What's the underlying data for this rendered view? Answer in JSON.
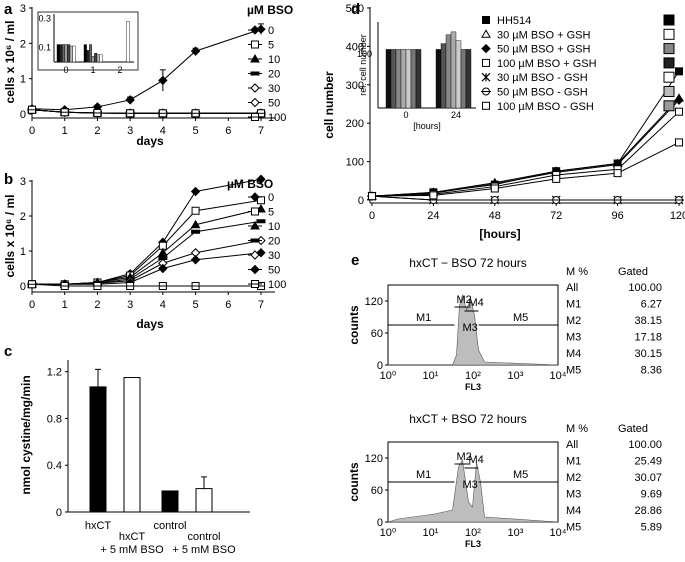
{
  "panels": {
    "a": {
      "label": "a"
    },
    "b": {
      "label": "b"
    },
    "c": {
      "label": "c"
    },
    "d": {
      "label": "d"
    },
    "e": {
      "label": "e"
    }
  },
  "chart_data": [
    {
      "panel": "a",
      "type": "line",
      "xlabel": "days",
      "ylabel": "cells x 10⁶ / ml",
      "legend_title": "µM BSO",
      "x": [
        0,
        1,
        2,
        3,
        4,
        5,
        6,
        7
      ],
      "xlim": [
        0,
        7
      ],
      "ylim": [
        0,
        3
      ],
      "yticks": [
        0,
        1,
        2,
        3
      ],
      "series": [
        {
          "name": "0",
          "marker": "diamond",
          "values": [
            0.15,
            0.12,
            0.2,
            0.4,
            0.95,
            1.78,
            null,
            2.4
          ],
          "errors": [
            0.03,
            0.03,
            0.05,
            0.08,
            0.3,
            0.08,
            null,
            0.15
          ]
        },
        {
          "name": "5",
          "marker": "square-open",
          "values": [
            0.12,
            0.05,
            0.03,
            0.02,
            0.02,
            0.02,
            null,
            0.02
          ]
        },
        {
          "name": "10",
          "marker": "triangle",
          "values": [
            0.12,
            0.05,
            0.03,
            0.02,
            0.02,
            0.02,
            null,
            0.02
          ]
        },
        {
          "name": "20",
          "marker": "hbar",
          "values": [
            0.12,
            0.05,
            0.03,
            0.02,
            0.02,
            0.02,
            null,
            0.02
          ]
        },
        {
          "name": "30",
          "marker": "diamond-open",
          "values": [
            0.12,
            0.05,
            0.03,
            0.02,
            0.02,
            0.02,
            null,
            0.02
          ]
        },
        {
          "name": "50",
          "marker": "diamond-open",
          "values": [
            0.12,
            0.05,
            0.03,
            0.02,
            0.02,
            0.02,
            null,
            0.02
          ]
        },
        {
          "name": "100",
          "marker": "square-cross",
          "values": [
            0.12,
            0.05,
            0.03,
            0.02,
            0.02,
            0.02,
            null,
            0.02
          ]
        }
      ],
      "inset": {
        "yticks": [
          0.1,
          0.3
        ],
        "xticks": [
          0,
          1,
          2
        ],
        "ylim": [
          0,
          0.33
        ],
        "groups": [
          {
            "x": 0,
            "values": [
              0.12,
              0.12,
              0.12,
              0.12,
              0.12,
              0.11,
              0.11
            ]
          },
          {
            "x": 1,
            "values": [
              0.12,
              0.08,
              0.12,
              0.04,
              0.06,
              0.05,
              0.05
            ]
          },
          {
            "x": 2,
            "values": [
              0.0,
              0.0,
              0.0,
              0.0,
              0.0,
              0.0,
              0.28
            ]
          }
        ]
      }
    },
    {
      "panel": "b",
      "type": "line",
      "xlabel": "days",
      "ylabel": "cells x 10⁶ / ml",
      "legend_title": "µM BSO",
      "x": [
        0,
        1,
        2,
        3,
        4,
        5,
        7
      ],
      "xlim": [
        0,
        7
      ],
      "ylim": [
        0,
        3
      ],
      "yticks": [
        0,
        1,
        2,
        3
      ],
      "series": [
        {
          "name": "0",
          "marker": "diamond",
          "values": [
            0.05,
            0.05,
            0.1,
            0.35,
            1.25,
            2.7,
            3.05
          ]
        },
        {
          "name": "5",
          "marker": "square-open",
          "values": [
            0.05,
            0.05,
            0.1,
            0.3,
            1.15,
            2.15,
            2.45
          ]
        },
        {
          "name": "10",
          "marker": "triangle",
          "values": [
            0.05,
            0.05,
            0.1,
            0.25,
            0.95,
            1.75,
            2.2
          ]
        },
        {
          "name": "20",
          "marker": "hbar",
          "values": [
            0.05,
            0.05,
            0.08,
            0.2,
            0.8,
            1.55,
            1.85
          ]
        },
        {
          "name": "30",
          "marker": "diamond-open",
          "values": [
            0.05,
            0.05,
            0.08,
            0.15,
            0.65,
            0.95,
            1.3
          ]
        },
        {
          "name": "50",
          "marker": "diamond",
          "values": [
            0.05,
            0.05,
            0.05,
            0.1,
            0.5,
            0.75,
            0.95
          ]
        },
        {
          "name": "100",
          "marker": "square-cross",
          "values": [
            0.05,
            0.0,
            0.0,
            0.0,
            0.0,
            0.0,
            0.0
          ]
        }
      ]
    },
    {
      "panel": "c",
      "type": "bar",
      "ylabel": "nmol cystine/mg/min",
      "categories": [
        "hxCT",
        "hxCT\n+ 5 mM BSO",
        "control",
        "control\n+ 5 mM BSO"
      ],
      "values": [
        1.07,
        1.15,
        0.18,
        0.2
      ],
      "errors": [
        0.15,
        0,
        0,
        0.1
      ],
      "fills": [
        "#000000",
        "#ffffff",
        "#000000",
        "#ffffff"
      ],
      "ylim": [
        0,
        1.3
      ],
      "yticks": [
        0,
        0.4,
        0.8,
        1.2
      ]
    },
    {
      "panel": "d",
      "type": "line",
      "xlabel": "[hours]",
      "ylabel": "cell number",
      "x": [
        0,
        24,
        48,
        72,
        96,
        120
      ],
      "xlim": [
        0,
        120
      ],
      "ylim": [
        0,
        500
      ],
      "yticks": [
        0,
        100,
        200,
        300,
        400,
        500
      ],
      "series": [
        {
          "name": "HH514",
          "marker": "square",
          "values": [
            10,
            20,
            40,
            75,
            95,
            335
          ]
        },
        {
          "name": "30 µM BSO + GSH",
          "marker": "triangle-open",
          "values": [
            10,
            20,
            45,
            75,
            95,
            265
          ]
        },
        {
          "name": "50 µM BSO + GSH",
          "marker": "diamond",
          "values": [
            10,
            18,
            42,
            72,
            92,
            260
          ]
        },
        {
          "name": "100 µM BSO + GSH",
          "marker": "square-open",
          "values": [
            10,
            15,
            35,
            65,
            80,
            230
          ]
        },
        {
          "name": "30 µM BSO - GSH",
          "marker": "star",
          "values": [
            10,
            0,
            0,
            0,
            0,
            0
          ]
        },
        {
          "name": "50 µM BSO - GSH",
          "marker": "circle-open",
          "values": [
            10,
            0,
            0,
            0,
            0,
            0
          ]
        },
        {
          "name": "100 µM BSO - GSH",
          "marker": "square-open",
          "values": [
            10,
            12,
            30,
            55,
            70,
            150
          ]
        }
      ],
      "inset": {
        "ylabel": "rel. cell number",
        "xlabel": "[hours]",
        "ytick": "100",
        "xticks": [
          "0",
          "24"
        ],
        "groups": [
          {
            "x": "0",
            "values": [
              100,
              100,
              100,
              100,
              100,
              100,
              100
            ]
          },
          {
            "x": "24",
            "values": [
              100,
              110,
              125,
              130,
              115,
              100,
              100
            ]
          }
        ]
      }
    },
    {
      "panel": "e",
      "type": "histogram",
      "plots": [
        {
          "title": "hxCT − BSO 72 hours",
          "xlabel": "FL3",
          "ylabel": "counts",
          "yticks": [
            0,
            60,
            120
          ],
          "xticks": [
            "10⁰",
            "10¹",
            "10²",
            "10³",
            "10⁴"
          ],
          "gates": [
            "M1",
            "M2",
            "M3",
            "M4",
            "M5"
          ],
          "stats_header": [
            "M %",
            "Gated"
          ],
          "stats": [
            [
              "All",
              "100.00"
            ],
            [
              "M1",
              "6.27"
            ],
            [
              "M2",
              "38.15"
            ],
            [
              "M3",
              "17.18"
            ],
            [
              "M4",
              "30.15"
            ],
            [
              "M5",
              "8.36"
            ]
          ]
        },
        {
          "title": "hxCT + BSO 72 hours",
          "xlabel": "FL3",
          "ylabel": "counts",
          "yticks": [
            0,
            60,
            120
          ],
          "xticks": [
            "10⁰",
            "10¹",
            "10²",
            "10³",
            "10⁴"
          ],
          "gates": [
            "M1",
            "M2",
            "M3",
            "M4",
            "M5"
          ],
          "stats_header": [
            "M %",
            "Gated"
          ],
          "stats": [
            [
              "All",
              "100.00"
            ],
            [
              "M1",
              "25.49"
            ],
            [
              "M2",
              "30.07"
            ],
            [
              "M3",
              "9.69"
            ],
            [
              "M4",
              "28.86"
            ],
            [
              "M5",
              "5.89"
            ]
          ]
        }
      ]
    }
  ]
}
